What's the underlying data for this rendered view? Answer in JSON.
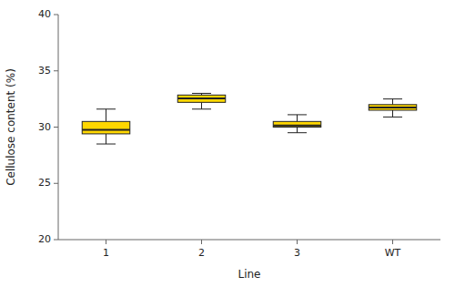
{
  "chart_data": {
    "type": "box",
    "categories": [
      "1",
      "2",
      "3",
      "WT"
    ],
    "boxes": [
      {
        "whisker_low": 28.5,
        "q1": 29.4,
        "median": 29.75,
        "q3": 30.5,
        "whisker_high": 31.6
      },
      {
        "whisker_low": 31.6,
        "q1": 32.2,
        "median": 32.55,
        "q3": 32.85,
        "whisker_high": 33.0
      },
      {
        "whisker_low": 29.5,
        "q1": 30.0,
        "median": 30.15,
        "q3": 30.5,
        "whisker_high": 31.1
      },
      {
        "whisker_low": 30.9,
        "q1": 31.5,
        "median": 31.75,
        "q3": 32.0,
        "whisker_high": 32.5
      }
    ],
    "color": "#FFD700",
    "xlabel": "Line",
    "ylabel": "Cellulose content (%)",
    "ylim": [
      20,
      40
    ],
    "yticks": [
      20,
      25,
      30,
      35,
      40
    ],
    "grid": false
  }
}
